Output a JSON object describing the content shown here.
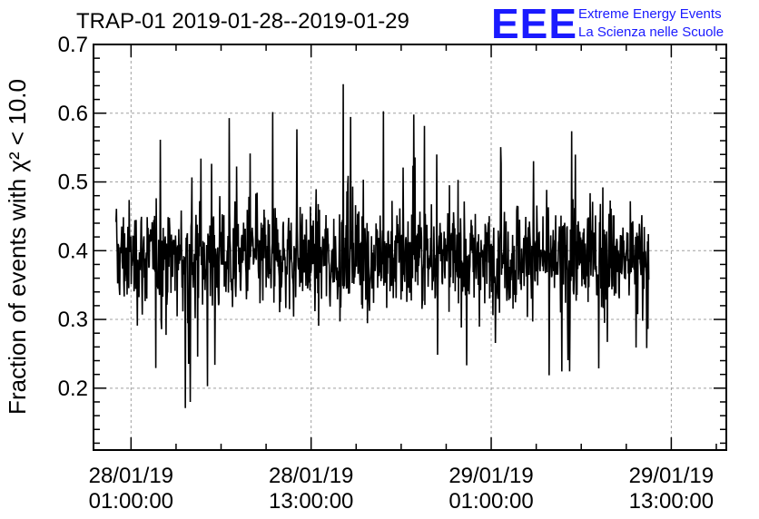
{
  "chart_data": {
    "type": "line",
    "title": "TRAP-01 2019-01-28--2019-01-29",
    "ylabel": "Fraction of events with χ² < 10.0",
    "xlabel": "",
    "ylim": [
      0.11,
      0.7
    ],
    "yticks": [
      0.2,
      0.3,
      0.4,
      0.5,
      0.6,
      0.7
    ],
    "ytick_labels": [
      "0.2",
      "0.3",
      "0.4",
      "0.5",
      "0.6",
      "0.7"
    ],
    "xlim": [
      "2019-01-27 22:30",
      "2019-01-29 16:40"
    ],
    "xticks": [
      {
        "date": "28/01/19",
        "time": "01:00:00",
        "value": "2019-01-28 01:00"
      },
      {
        "date": "28/01/19",
        "time": "13:00:00",
        "value": "2019-01-28 13:00"
      },
      {
        "date": "29/01/19",
        "time": "01:00:00",
        "value": "2019-01-29 01:00"
      },
      {
        "date": "29/01/19",
        "time": "13:00:00",
        "value": "2019-01-29 13:00"
      }
    ],
    "grid": true,
    "series": [
      {
        "x_start": "2019-01-27 24:00",
        "x_end": "2019-01-29 11:30",
        "mean": 0.39,
        "min": 0.16,
        "max": 0.66,
        "note": "dense noisy time series"
      }
    ]
  },
  "logo": {
    "mark": "EEE",
    "line1": "Extreme Energy Events",
    "line2": "La Scienza nelle Scuole",
    "color": "#1a1aff"
  }
}
